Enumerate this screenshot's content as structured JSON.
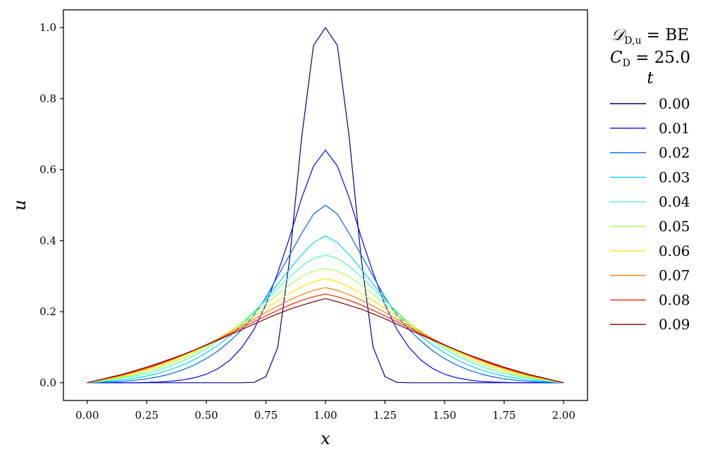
{
  "chart_data": {
    "type": "line",
    "xlabel": "x",
    "ylabel": "u",
    "xlim": [
      -0.1,
      2.1
    ],
    "ylim": [
      -0.05,
      1.05
    ],
    "xticks": [
      "0.00",
      "0.25",
      "0.50",
      "0.75",
      "1.00",
      "1.25",
      "1.50",
      "1.75",
      "2.00"
    ],
    "yticks": [
      "0.0",
      "0.2",
      "0.4",
      "0.6",
      "0.8",
      "1.0"
    ],
    "grid": false,
    "legend_placement": "outside-right",
    "legend_title": {
      "line1_left": "𝒟",
      "line1_sub": "D,u",
      "line1_right": " = BE",
      "line2_left": "C",
      "line2_sub": "D",
      "line2_right": " = 25.0",
      "line3": "t"
    },
    "x": [
      0.0,
      0.05,
      0.1,
      0.15,
      0.2,
      0.25,
      0.3,
      0.35,
      0.4,
      0.45,
      0.5,
      0.55,
      0.6,
      0.65,
      0.7,
      0.75,
      0.8,
      0.85,
      0.9,
      0.95,
      1.0,
      1.05,
      1.1,
      1.15,
      1.2,
      1.25,
      1.3,
      1.35,
      1.4,
      1.45,
      1.5,
      1.55,
      1.6,
      1.65,
      1.7,
      1.75,
      1.8,
      1.85,
      1.9,
      1.95,
      2.0
    ],
    "series": [
      {
        "name": "0.00",
        "color": "#00007f",
        "values": [
          0.0,
          0.0,
          0.0,
          0.0,
          0.0,
          0.0,
          0.0,
          0.0,
          0.0,
          0.0,
          0.0,
          0.0,
          0.0,
          0.0,
          0.001,
          0.017,
          0.1,
          0.35,
          0.69,
          0.95,
          1.0,
          0.95,
          0.69,
          0.35,
          0.1,
          0.017,
          0.001,
          0.0,
          0.0,
          0.0,
          0.0,
          0.0,
          0.0,
          0.0,
          0.0,
          0.0,
          0.0,
          0.0,
          0.0,
          0.0,
          0.0
        ]
      },
      {
        "name": "0.01",
        "color": "#0000ff",
        "values": [
          0.0,
          0.0,
          0.0,
          0.0,
          0.0,
          0.001,
          0.002,
          0.004,
          0.008,
          0.014,
          0.024,
          0.04,
          0.064,
          0.1,
          0.15,
          0.22,
          0.31,
          0.41,
          0.52,
          0.61,
          0.655,
          0.61,
          0.52,
          0.41,
          0.31,
          0.22,
          0.15,
          0.1,
          0.064,
          0.04,
          0.024,
          0.014,
          0.008,
          0.004,
          0.002,
          0.001,
          0.0,
          0.0,
          0.0,
          0.0,
          0.0
        ]
      },
      {
        "name": "0.02",
        "color": "#0063ff",
        "values": [
          0.0,
          0.001,
          0.002,
          0.004,
          0.007,
          0.011,
          0.017,
          0.025,
          0.036,
          0.05,
          0.068,
          0.09,
          0.118,
          0.15,
          0.19,
          0.24,
          0.3,
          0.36,
          0.42,
          0.475,
          0.5,
          0.475,
          0.42,
          0.36,
          0.3,
          0.24,
          0.19,
          0.15,
          0.118,
          0.09,
          0.068,
          0.05,
          0.036,
          0.025,
          0.017,
          0.011,
          0.007,
          0.004,
          0.002,
          0.001,
          0.0
        ]
      },
      {
        "name": "0.03",
        "color": "#00d4ff",
        "values": [
          0.0,
          0.002,
          0.005,
          0.008,
          0.013,
          0.019,
          0.027,
          0.037,
          0.05,
          0.065,
          0.084,
          0.106,
          0.132,
          0.162,
          0.197,
          0.236,
          0.278,
          0.32,
          0.36,
          0.395,
          0.413,
          0.395,
          0.36,
          0.32,
          0.278,
          0.236,
          0.197,
          0.162,
          0.132,
          0.106,
          0.084,
          0.065,
          0.05,
          0.037,
          0.027,
          0.019,
          0.013,
          0.008,
          0.005,
          0.002,
          0.0
        ]
      },
      {
        "name": "0.04",
        "color": "#4effa9",
        "values": [
          0.0,
          0.004,
          0.008,
          0.013,
          0.019,
          0.026,
          0.036,
          0.047,
          0.061,
          0.077,
          0.096,
          0.118,
          0.143,
          0.17,
          0.2,
          0.232,
          0.265,
          0.298,
          0.328,
          0.35,
          0.36,
          0.35,
          0.328,
          0.298,
          0.265,
          0.232,
          0.2,
          0.17,
          0.143,
          0.118,
          0.096,
          0.077,
          0.061,
          0.047,
          0.036,
          0.026,
          0.019,
          0.013,
          0.008,
          0.004,
          0.0
        ]
      },
      {
        "name": "0.05",
        "color": "#a9ff4e",
        "values": [
          0.0,
          0.005,
          0.01,
          0.016,
          0.023,
          0.032,
          0.042,
          0.054,
          0.068,
          0.084,
          0.102,
          0.122,
          0.145,
          0.169,
          0.195,
          0.222,
          0.249,
          0.275,
          0.298,
          0.315,
          0.322,
          0.315,
          0.298,
          0.275,
          0.249,
          0.222,
          0.195,
          0.169,
          0.145,
          0.122,
          0.102,
          0.084,
          0.068,
          0.054,
          0.042,
          0.032,
          0.023,
          0.016,
          0.01,
          0.005,
          0.0
        ]
      },
      {
        "name": "0.06",
        "color": "#ffe500",
        "values": [
          0.0,
          0.006,
          0.012,
          0.019,
          0.027,
          0.036,
          0.047,
          0.059,
          0.073,
          0.088,
          0.105,
          0.124,
          0.144,
          0.165,
          0.187,
          0.209,
          0.231,
          0.252,
          0.27,
          0.285,
          0.293,
          0.285,
          0.27,
          0.252,
          0.231,
          0.209,
          0.187,
          0.165,
          0.144,
          0.124,
          0.105,
          0.088,
          0.073,
          0.059,
          0.047,
          0.036,
          0.027,
          0.019,
          0.012,
          0.006,
          0.0
        ]
      },
      {
        "name": "0.07",
        "color": "#ff8200",
        "values": [
          0.0,
          0.007,
          0.014,
          0.021,
          0.03,
          0.04,
          0.051,
          0.063,
          0.077,
          0.091,
          0.107,
          0.124,
          0.142,
          0.16,
          0.179,
          0.198,
          0.216,
          0.233,
          0.248,
          0.26,
          0.268,
          0.26,
          0.248,
          0.233,
          0.216,
          0.198,
          0.179,
          0.16,
          0.142,
          0.124,
          0.107,
          0.091,
          0.077,
          0.063,
          0.051,
          0.04,
          0.03,
          0.021,
          0.014,
          0.007,
          0.0
        ]
      },
      {
        "name": "0.08",
        "color": "#ff1e00",
        "values": [
          0.0,
          0.008,
          0.015,
          0.023,
          0.032,
          0.042,
          0.053,
          0.065,
          0.078,
          0.092,
          0.107,
          0.122,
          0.138,
          0.155,
          0.172,
          0.188,
          0.204,
          0.219,
          0.232,
          0.242,
          0.25,
          0.242,
          0.232,
          0.219,
          0.204,
          0.188,
          0.172,
          0.155,
          0.138,
          0.122,
          0.107,
          0.092,
          0.078,
          0.065,
          0.053,
          0.042,
          0.032,
          0.023,
          0.015,
          0.008,
          0.0
        ]
      },
      {
        "name": "0.09",
        "color": "#7f0000",
        "values": [
          0.0,
          0.008,
          0.016,
          0.024,
          0.034,
          0.044,
          0.055,
          0.067,
          0.079,
          0.092,
          0.106,
          0.12,
          0.135,
          0.15,
          0.165,
          0.18,
          0.194,
          0.207,
          0.218,
          0.228,
          0.237,
          0.228,
          0.218,
          0.207,
          0.194,
          0.18,
          0.165,
          0.15,
          0.135,
          0.12,
          0.106,
          0.092,
          0.079,
          0.067,
          0.055,
          0.044,
          0.034,
          0.024,
          0.016,
          0.008,
          0.0
        ]
      }
    ]
  }
}
